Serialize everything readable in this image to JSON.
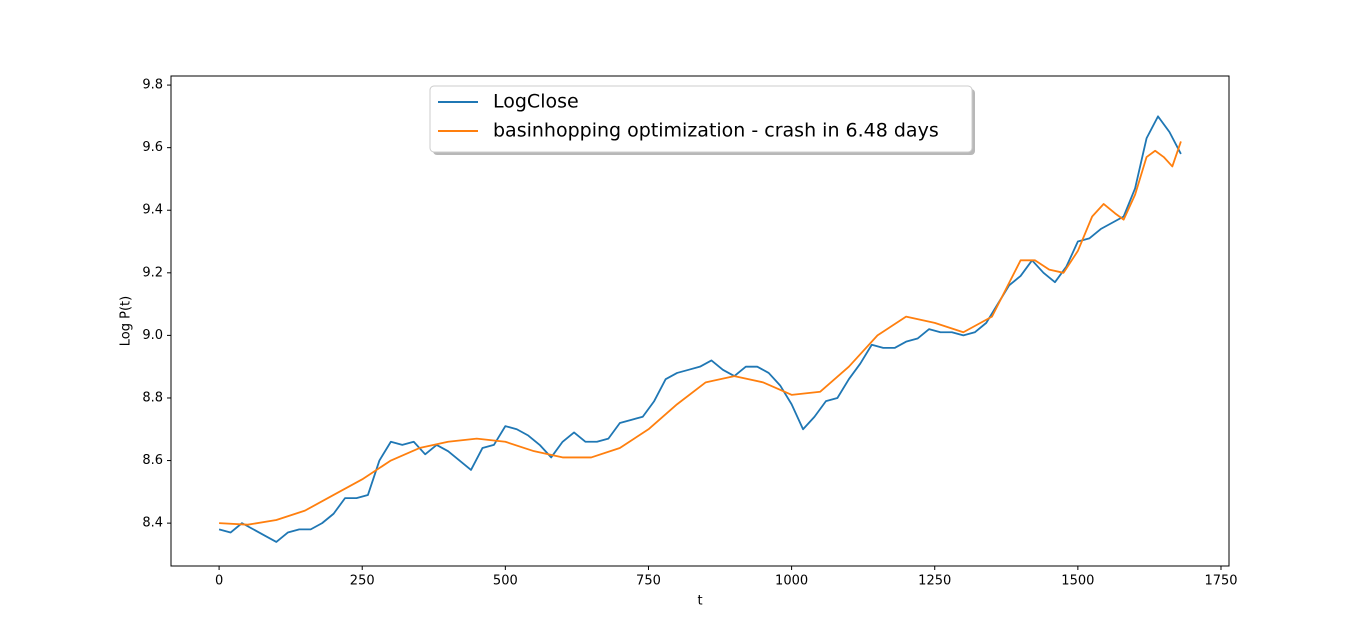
{
  "chart_data": {
    "type": "line",
    "xlabel": "t",
    "ylabel": "Log P(t)",
    "xlim": [
      -84,
      1764
    ],
    "ylim": [
      8.263,
      9.829
    ],
    "xticks": [
      0,
      250,
      500,
      750,
      1000,
      1250,
      1500,
      1750
    ],
    "yticks": [
      8.4,
      8.6,
      8.8,
      {
        "value": 9,
        "label": "9.0"
      },
      9.2,
      9.4,
      9.6,
      9.8
    ],
    "legend": "upper center",
    "series": [
      {
        "name": "LogClose",
        "color": "#1f77b4",
        "x": [
          0,
          20,
          40,
          60,
          80,
          100,
          120,
          140,
          160,
          180,
          200,
          220,
          240,
          260,
          280,
          300,
          320,
          340,
          360,
          380,
          400,
          420,
          440,
          460,
          480,
          500,
          520,
          540,
          560,
          580,
          600,
          620,
          640,
          660,
          680,
          700,
          720,
          740,
          760,
          780,
          800,
          820,
          840,
          860,
          880,
          900,
          920,
          940,
          960,
          980,
          1000,
          1020,
          1040,
          1060,
          1080,
          1100,
          1120,
          1140,
          1160,
          1180,
          1200,
          1220,
          1240,
          1260,
          1280,
          1300,
          1320,
          1340,
          1360,
          1380,
          1400,
          1420,
          1440,
          1460,
          1480,
          1500,
          1520,
          1540,
          1560,
          1580,
          1600,
          1620,
          1640,
          1660,
          1680
        ],
        "values": [
          8.38,
          8.37,
          8.4,
          8.38,
          8.36,
          8.34,
          8.37,
          8.38,
          8.38,
          8.4,
          8.43,
          8.48,
          8.48,
          8.49,
          8.6,
          8.66,
          8.65,
          8.66,
          8.62,
          8.65,
          8.63,
          8.6,
          8.57,
          8.64,
          8.65,
          8.71,
          8.7,
          8.68,
          8.65,
          8.61,
          8.66,
          8.69,
          8.66,
          8.66,
          8.67,
          8.72,
          8.73,
          8.74,
          8.79,
          8.86,
          8.88,
          8.89,
          8.9,
          8.92,
          8.89,
          8.87,
          8.9,
          8.9,
          8.88,
          8.84,
          8.78,
          8.7,
          8.74,
          8.79,
          8.8,
          8.86,
          8.91,
          8.97,
          8.96,
          8.96,
          8.98,
          8.99,
          9.02,
          9.01,
          9.01,
          9.0,
          9.01,
          9.04,
          9.1,
          9.16,
          9.19,
          9.24,
          9.2,
          9.17,
          9.22,
          9.3,
          9.31,
          9.34,
          9.36,
          9.38,
          9.47,
          9.63,
          9.7,
          9.65,
          9.58
        ]
      },
      {
        "name": "basinhopping optimization - crash in 6.48 days",
        "color": "#ff7f0e",
        "x": [
          0,
          50,
          100,
          150,
          200,
          250,
          300,
          350,
          400,
          450,
          500,
          550,
          600,
          650,
          700,
          750,
          800,
          850,
          900,
          950,
          1000,
          1050,
          1100,
          1150,
          1200,
          1250,
          1300,
          1350,
          1400,
          1425,
          1450,
          1475,
          1500,
          1525,
          1545,
          1565,
          1580,
          1600,
          1620,
          1635,
          1650,
          1665,
          1680
        ],
        "values": [
          8.4,
          8.395,
          8.41,
          8.44,
          8.49,
          8.54,
          8.6,
          8.64,
          8.66,
          8.67,
          8.66,
          8.63,
          8.61,
          8.61,
          8.64,
          8.7,
          8.78,
          8.85,
          8.87,
          8.85,
          8.81,
          8.82,
          8.9,
          9.0,
          9.06,
          9.04,
          9.01,
          9.06,
          9.24,
          9.24,
          9.21,
          9.2,
          9.27,
          9.38,
          9.42,
          9.39,
          9.37,
          9.45,
          9.57,
          9.59,
          9.57,
          9.54,
          9.62
        ]
      }
    ]
  }
}
